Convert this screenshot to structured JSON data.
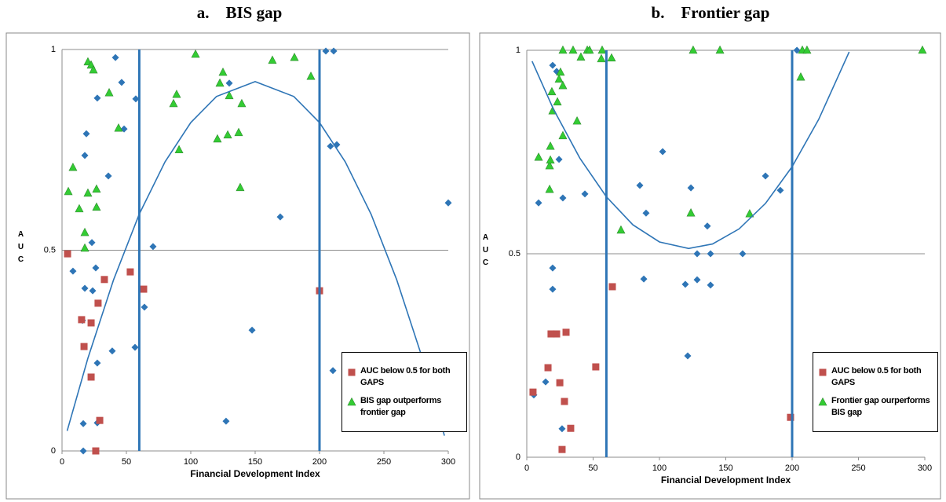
{
  "chart_data": [
    {
      "type": "scatter",
      "title": "a.    BIS gap",
      "x_label": "Financial Development Index",
      "y_label": "AUC",
      "xlim": [
        0,
        300
      ],
      "xticks": [
        0,
        50,
        100,
        150,
        200,
        250,
        300
      ],
      "ylim": [
        0,
        1
      ],
      "yticks": [
        0,
        0.5,
        1
      ],
      "grid": true,
      "legend": "lower right",
      "vlines": [
        60,
        200
      ],
      "vline_color": "#2e75b6",
      "series": [
        {
          "color": "#2e75b6",
          "marker": "diamond",
          "x": [
            41.5,
            46.3,
            57.3,
            27.4,
            48.2,
            18.9,
            17.7,
            36,
            8.5,
            17.7,
            23.8,
            26.2,
            23.2,
            15.9,
            39,
            56.7,
            27.4,
            16.5,
            16.5,
            27.4,
            64,
            70.7,
            129.9,
            169.5,
            147.6,
            127.4,
            204.9,
            211,
            208.5,
            213.4,
            210.4,
            300
          ],
          "values": [
            0.98,
            0.918,
            0.877,
            0.879,
            0.802,
            0.79,
            0.736,
            0.685,
            0.448,
            0.405,
            0.399,
            0.456,
            0.519,
            0.325,
            0.249,
            0.258,
            0.219,
            0.068,
            0,
            0.07,
            0.358,
            0.509,
            0.916,
            0.583,
            0.301,
            0.074,
            0.996,
            0.996,
            0.759,
            0.763,
            0.2,
            0.618
          ]
        },
        {
          "name": "AUC below 0.5 for both GAPS",
          "color": "#c0504d",
          "marker": "square",
          "x": [
            4.3,
            15.2,
            17.1,
            22.6,
            22.6,
            28,
            32.9,
            53,
            63.4,
            29.3,
            26.2,
            200
          ],
          "values": [
            0.491,
            0.327,
            0.26,
            0.319,
            0.184,
            0.368,
            0.427,
            0.446,
            0.403,
            0.076,
            0,
            0.399
          ]
        },
        {
          "name": "BIS gap outperforms frontier gap",
          "color": "#33cc33",
          "marker": "triangle",
          "x": [
            4.9,
            8.5,
            13.4,
            20.1,
            17.7,
            17.7,
            20.1,
            22.6,
            24.4,
            26.8,
            26.8,
            36.6,
            43.9,
            86.6,
            89,
            90.9,
            103.7,
            122.6,
            125,
            129.9,
            128.7,
            120.7,
            137.2,
            139.6,
            138.4,
            163.4,
            180.5,
            193.3
          ],
          "values": [
            0.646,
            0.706,
            0.603,
            0.642,
            0.544,
            0.505,
            0.969,
            0.961,
            0.949,
            0.652,
            0.607,
            0.892,
            0.804,
            0.865,
            0.888,
            0.75,
            0.988,
            0.916,
            0.943,
            0.885,
            0.787,
            0.777,
            0.793,
            0.865,
            0.656,
            0.973,
            0.98,
            0.933
          ]
        }
      ],
      "trend": {
        "color": "#2e75b6",
        "x": [
          4,
          20,
          40,
          60,
          80,
          100,
          120,
          150,
          180,
          200,
          220,
          240,
          260,
          280,
          297
        ],
        "values": [
          0.05,
          0.23,
          0.426,
          0.59,
          0.72,
          0.818,
          0.883,
          0.92,
          0.883,
          0.818,
          0.72,
          0.59,
          0.426,
          0.23,
          0.038
        ]
      }
    },
    {
      "type": "scatter",
      "title": "b.    Frontier gap",
      "x_label": "Financial Development Index",
      "y_label": "AUC",
      "xlim": [
        0,
        300
      ],
      "xticks": [
        0,
        50,
        100,
        150,
        200,
        250,
        300
      ],
      "ylim": [
        0,
        1
      ],
      "yticks": [
        0,
        0.5,
        1
      ],
      "grid": true,
      "legend": "lower right",
      "vlines": [
        60,
        200
      ],
      "vline_color": "#2e75b6",
      "series": [
        {
          "color": "#2e75b6",
          "marker": "diamond",
          "x": [
            5.3,
            8.9,
            14.2,
            19.5,
            19.5,
            24.3,
            27.2,
            26.6,
            43.8,
            19.5,
            22.5,
            85.2,
            89.9,
            88.2,
            102.4,
            119.5,
            121.3,
            123.7,
            128.4,
            128.4,
            136.1,
            138.5,
            138.5,
            162.7,
            179.9,
            191.1,
            203.6
          ],
          "values": [
            0.153,
            0.625,
            0.185,
            0.413,
            0.465,
            0.732,
            0.637,
            0.07,
            0.647,
            0.963,
            0.948,
            0.668,
            0.6,
            0.438,
            0.751,
            0.425,
            0.249,
            0.662,
            0.5,
            0.436,
            0.568,
            0.423,
            0.5,
            0.5,
            0.691,
            0.656,
            1
          ]
        },
        {
          "name": "AUC below 0.5 for both GAPS",
          "color": "#c0504d",
          "marker": "square",
          "x": [
            4.7,
            16,
            18.3,
            22.5,
            24.9,
            28.4,
            26.6,
            29.6,
            33.1,
            52,
            64.5,
            198.8
          ],
          "values": [
            0.16,
            0.22,
            0.303,
            0.303,
            0.183,
            0.137,
            0.019,
            0.307,
            0.071,
            0.222,
            0.419,
            0.098
          ]
        },
        {
          "name": "Frontier gap ourperforms BIS gap",
          "color": "#33cc33",
          "marker": "triangle",
          "x": [
            8.9,
            17.2,
            17.8,
            17.8,
            17.2,
            18.9,
            19.5,
            23.1,
            24.3,
            25.4,
            27.2,
            27.2,
            27.2,
            34.9,
            37.9,
            40.8,
            45.6,
            47.3,
            56.2,
            56.8,
            63.9,
            71,
            125.4,
            145.6,
            168,
            123.7,
            206.5,
            207.7,
            211.2,
            298.2
          ],
          "values": [
            0.737,
            0.716,
            0.73,
            0.764,
            0.658,
            0.898,
            0.851,
            0.873,
            0.929,
            0.946,
            0.913,
            0.79,
            1,
            1,
            0.826,
            0.983,
            1,
            1,
            0.979,
            1,
            0.981,
            0.558,
            1,
            1,
            0.598,
            0.6,
            0.934,
            1,
            1,
            1
          ]
        }
      ],
      "trend": {
        "color": "#2e75b6",
        "x": [
          4,
          20,
          40,
          60,
          80,
          100,
          122,
          140,
          160,
          180,
          200,
          220,
          243
        ],
        "values": [
          0.973,
          0.856,
          0.735,
          0.64,
          0.571,
          0.529,
          0.513,
          0.524,
          0.561,
          0.624,
          0.714,
          0.83,
          0.996
        ]
      }
    }
  ]
}
